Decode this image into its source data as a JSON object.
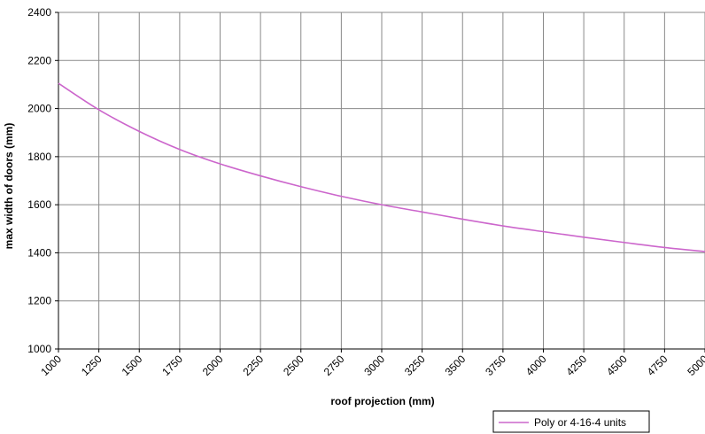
{
  "chart_data": {
    "type": "line",
    "xlabel": "roof projection (mm)",
    "ylabel": "max width of doors (mm)",
    "xlim": [
      1000,
      5000
    ],
    "ylim": [
      1000,
      2400
    ],
    "x_ticks": [
      "1000",
      "1250",
      "1500",
      "1750",
      "2000",
      "2250",
      "2500",
      "2750",
      "3000",
      "3250",
      "3500",
      "3750",
      "4000",
      "4250",
      "4500",
      "4750",
      "5000"
    ],
    "y_ticks": [
      "1000",
      "1200",
      "1400",
      "1600",
      "1800",
      "2000",
      "2200",
      "2400"
    ],
    "grid": true,
    "legend_position": "bottom-right",
    "series": [
      {
        "name": "Poly or 4-16-4 units",
        "color": "#cc66cc",
        "x": [
          1000,
          1250,
          1500,
          1750,
          2000,
          2250,
          2500,
          2750,
          3000,
          3250,
          3500,
          3750,
          4000,
          4250,
          4500,
          4750,
          5000
        ],
        "y": [
          2105,
          1995,
          1905,
          1830,
          1770,
          1720,
          1675,
          1635,
          1600,
          1570,
          1540,
          1512,
          1488,
          1465,
          1443,
          1422,
          1405
        ]
      }
    ]
  }
}
